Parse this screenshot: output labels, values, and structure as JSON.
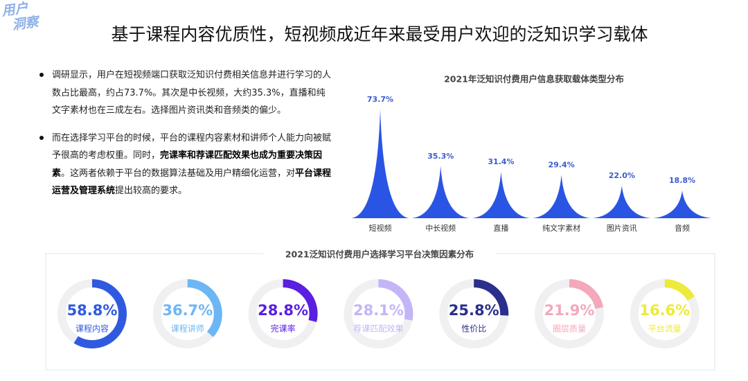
{
  "logo": [
    "用户",
    "洞察"
  ],
  "title": "基于课程内容优质性，短视频成近年来最受用户欢迎的泛知识学习载体",
  "bullets": [
    {
      "segments": [
        {
          "text": "调研显示，用户在短视频端口获取泛知识付费相关信息并进行学习的人数占比最高，约占73.7%。其次是中长视频，大约35.3%，直播和纯文字素材也在三成左右。选择图片资讯类和音频类的偏少。",
          "bold": false
        }
      ]
    },
    {
      "segments": [
        {
          "text": "而在选择学习平台的时候，平台的课程内容素材和讲师个人能力向被赋予很高的考虑权重。同时，",
          "bold": false
        },
        {
          "text": "完课率和荐课匹配效果也成为重要决策因素",
          "bold": true
        },
        {
          "text": "。这两者依赖于平台的数据算法基础及用户精细化运营，对",
          "bold": false
        },
        {
          "text": "平台课程运营及管理系统",
          "bold": true
        },
        {
          "text": "提出较高的要求。",
          "bold": false
        }
      ]
    }
  ],
  "chart_data": [
    {
      "type": "spike",
      "title": "2021年泛知识付费用户信息获取载体类型分布",
      "color": "#2a55e4",
      "categories": [
        "短视频",
        "中长视频",
        "直播",
        "纯文字素材",
        "图片资讯",
        "音频"
      ],
      "values": [
        73.7,
        35.3,
        31.4,
        29.4,
        22.0,
        18.8
      ],
      "value_labels": [
        "73.7%",
        "35.3%",
        "31.4%",
        "29.4%",
        "22.0%",
        "18.8%"
      ]
    },
    {
      "type": "donut",
      "title": "2021泛知识付费用户选择学习平台决策因素分布",
      "categories": [
        "课程内容",
        "课程讲师",
        "完课率",
        "荐课匹配效果",
        "性价比",
        "圈层质量",
        "平台流量"
      ],
      "values": [
        58.8,
        36.7,
        28.8,
        28.1,
        25.8,
        21.9,
        16.6
      ],
      "value_labels": [
        "58.8%",
        "36.7%",
        "28.8%",
        "28.1%",
        "25.8%",
        "21.9%",
        "16.6%"
      ],
      "colors": [
        "#2f5ae0",
        "#6cb6f5",
        "#5a1fe0",
        "#c4b5f6",
        "#2a2e8c",
        "#f4a8ba",
        "#eeea3a"
      ]
    }
  ]
}
